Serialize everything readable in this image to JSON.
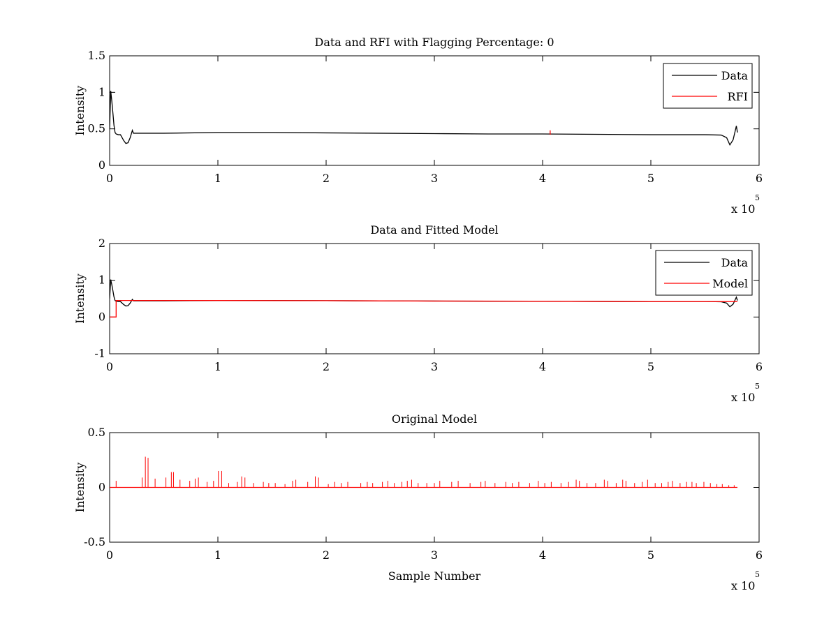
{
  "chart_data": [
    {
      "type": "line",
      "title": "Data and RFI with Flagging Percentage: 0",
      "xlabel": "",
      "ylabel": "Intensity",
      "xlim": [
        0,
        600000
      ],
      "ylim": [
        0,
        1.5
      ],
      "xticks": [
        0,
        100000,
        200000,
        300000,
        400000,
        500000,
        600000
      ],
      "xtick_labels": [
        "0",
        "1",
        "2",
        "3",
        "4",
        "5",
        "6"
      ],
      "yticks": [
        0,
        0.5,
        1,
        1.5
      ],
      "ytick_labels": [
        "0",
        "0.5",
        "1",
        "1.5"
      ],
      "x_exponent_label": "x 10",
      "x_exponent_power": "5",
      "grid": false,
      "legend_position": "top-right",
      "series": [
        {
          "name": "Data",
          "color": "#000000",
          "x": [
            0,
            1000,
            2000,
            3000,
            4000,
            5000,
            6000,
            8000,
            10000,
            13000,
            15000,
            17000,
            19000,
            21000,
            22000,
            30000,
            50000,
            100000,
            150000,
            200000,
            250000,
            300000,
            350000,
            400000,
            450000,
            500000,
            550000,
            565000,
            570000,
            573000,
            576000,
            579000,
            580000
          ],
          "y": [
            0.5,
            1.02,
            0.88,
            0.72,
            0.55,
            0.45,
            0.43,
            0.42,
            0.42,
            0.34,
            0.3,
            0.31,
            0.38,
            0.48,
            0.44,
            0.44,
            0.44,
            0.45,
            0.45,
            0.445,
            0.44,
            0.435,
            0.43,
            0.43,
            0.425,
            0.42,
            0.42,
            0.415,
            0.38,
            0.28,
            0.35,
            0.54,
            0.45
          ]
        },
        {
          "name": "RFI",
          "color": "#ff0000",
          "x": [
            407000,
            407000
          ],
          "y": [
            0.42,
            0.48
          ]
        }
      ]
    },
    {
      "type": "line",
      "title": "Data and Fitted Model",
      "xlabel": "",
      "ylabel": "Intensity",
      "xlim": [
        0,
        600000
      ],
      "ylim": [
        -1,
        2
      ],
      "xticks": [
        0,
        100000,
        200000,
        300000,
        400000,
        500000,
        600000
      ],
      "xtick_labels": [
        "0",
        "1",
        "2",
        "3",
        "4",
        "5",
        "6"
      ],
      "yticks": [
        -1,
        0,
        1,
        2
      ],
      "ytick_labels": [
        "-1",
        "0",
        "1",
        "2"
      ],
      "x_exponent_label": "x 10",
      "x_exponent_power": "5",
      "grid": false,
      "legend_position": "top-right",
      "series": [
        {
          "name": "Data",
          "color": "#000000",
          "x": [
            0,
            1000,
            2000,
            3000,
            4000,
            5000,
            6000,
            8000,
            10000,
            13000,
            15000,
            17000,
            19000,
            21000,
            22000,
            30000,
            50000,
            100000,
            150000,
            200000,
            250000,
            300000,
            350000,
            400000,
            450000,
            500000,
            550000,
            565000,
            570000,
            573000,
            576000,
            579000,
            580000
          ],
          "y": [
            0.5,
            1.02,
            0.88,
            0.72,
            0.55,
            0.45,
            0.43,
            0.42,
            0.42,
            0.34,
            0.3,
            0.31,
            0.38,
            0.48,
            0.44,
            0.44,
            0.44,
            0.45,
            0.45,
            0.445,
            0.44,
            0.435,
            0.43,
            0.43,
            0.425,
            0.42,
            0.42,
            0.415,
            0.38,
            0.28,
            0.35,
            0.54,
            0.45
          ]
        },
        {
          "name": "Model",
          "color": "#ff0000",
          "x": [
            0,
            6000,
            6000,
            100000,
            200000,
            300000,
            400000,
            500000,
            580000
          ],
          "y": [
            0,
            0,
            0.45,
            0.45,
            0.445,
            0.435,
            0.43,
            0.42,
            0.42
          ]
        }
      ]
    },
    {
      "type": "line",
      "title": "Original Model",
      "xlabel": "Sample Number",
      "ylabel": "Intensity",
      "xlim": [
        0,
        600000
      ],
      "ylim": [
        -0.5,
        0.5
      ],
      "xticks": [
        0,
        100000,
        200000,
        300000,
        400000,
        500000,
        600000
      ],
      "xtick_labels": [
        "0",
        "1",
        "2",
        "3",
        "4",
        "5",
        "6"
      ],
      "yticks": [
        -0.5,
        0,
        0.5
      ],
      "ytick_labels": [
        "-0.5",
        "0",
        "0.5"
      ],
      "x_exponent_label": "x 10",
      "x_exponent_power": "5",
      "grid": false,
      "baseline": {
        "x": [
          0,
          580000
        ],
        "y": 0,
        "color": "#ff0000"
      },
      "spikes_color": "#ff0000",
      "spikes": [
        [
          6000,
          0.06
        ],
        [
          30000,
          0.09
        ],
        [
          33000,
          0.28
        ],
        [
          35500,
          0.27
        ],
        [
          42000,
          0.08
        ],
        [
          52000,
          0.09
        ],
        [
          57000,
          0.14
        ],
        [
          59000,
          0.14
        ],
        [
          65000,
          0.07
        ],
        [
          74000,
          0.06
        ],
        [
          79000,
          0.08
        ],
        [
          82000,
          0.09
        ],
        [
          90000,
          0.05
        ],
        [
          96000,
          0.06
        ],
        [
          100500,
          0.15
        ],
        [
          103500,
          0.15
        ],
        [
          110000,
          0.04
        ],
        [
          118000,
          0.05
        ],
        [
          122000,
          0.1
        ],
        [
          125000,
          0.09
        ],
        [
          133000,
          0.04
        ],
        [
          142000,
          0.05
        ],
        [
          147000,
          0.04
        ],
        [
          153000,
          0.04
        ],
        [
          162000,
          0.03
        ],
        [
          169000,
          0.06
        ],
        [
          172000,
          0.07
        ],
        [
          183000,
          0.05
        ],
        [
          190000,
          0.1
        ],
        [
          193000,
          0.09
        ],
        [
          202000,
          0.03
        ],
        [
          208000,
          0.05
        ],
        [
          214000,
          0.04
        ],
        [
          220000,
          0.05
        ],
        [
          232000,
          0.04
        ],
        [
          238000,
          0.05
        ],
        [
          243000,
          0.04
        ],
        [
          252000,
          0.05
        ],
        [
          257000,
          0.06
        ],
        [
          263000,
          0.04
        ],
        [
          270000,
          0.05
        ],
        [
          275000,
          0.06
        ],
        [
          279000,
          0.07
        ],
        [
          285000,
          0.04
        ],
        [
          293000,
          0.04
        ],
        [
          300000,
          0.04
        ],
        [
          305000,
          0.06
        ],
        [
          316000,
          0.05
        ],
        [
          322000,
          0.06
        ],
        [
          333000,
          0.04
        ],
        [
          343000,
          0.05
        ],
        [
          347000,
          0.06
        ],
        [
          356000,
          0.04
        ],
        [
          366000,
          0.05
        ],
        [
          372000,
          0.04
        ],
        [
          378000,
          0.05
        ],
        [
          388000,
          0.04
        ],
        [
          396000,
          0.06
        ],
        [
          402000,
          0.04
        ],
        [
          408000,
          0.05
        ],
        [
          417000,
          0.04
        ],
        [
          424000,
          0.05
        ],
        [
          431000,
          0.07
        ],
        [
          434000,
          0.06
        ],
        [
          441000,
          0.04
        ],
        [
          449000,
          0.04
        ],
        [
          457000,
          0.07
        ],
        [
          460000,
          0.06
        ],
        [
          468000,
          0.04
        ],
        [
          474000,
          0.07
        ],
        [
          477000,
          0.06
        ],
        [
          485000,
          0.04
        ],
        [
          492000,
          0.05
        ],
        [
          497000,
          0.07
        ],
        [
          504000,
          0.04
        ],
        [
          510000,
          0.04
        ],
        [
          516000,
          0.05
        ],
        [
          520000,
          0.06
        ],
        [
          527000,
          0.04
        ],
        [
          533000,
          0.05
        ],
        [
          538000,
          0.05
        ],
        [
          542000,
          0.04
        ],
        [
          549000,
          0.05
        ],
        [
          555000,
          0.04
        ],
        [
          561000,
          0.03
        ],
        [
          566000,
          0.03
        ],
        [
          572000,
          0.02
        ],
        [
          577000,
          0.02
        ]
      ]
    }
  ]
}
